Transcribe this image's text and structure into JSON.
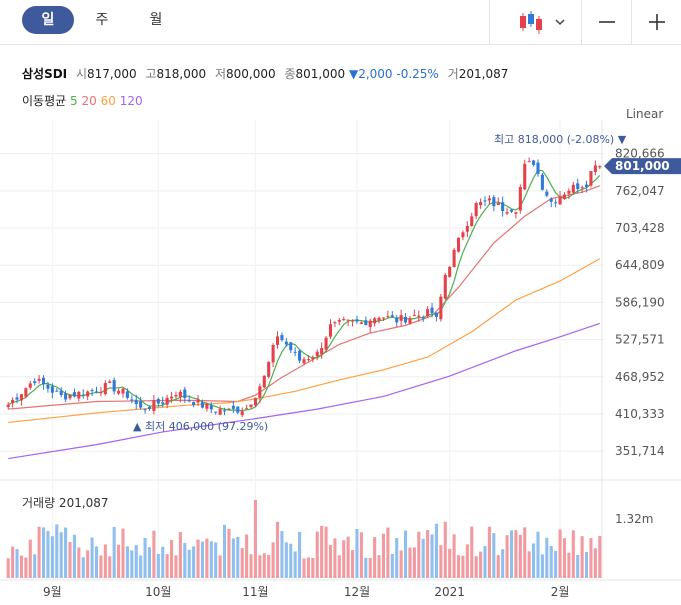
{
  "tabs": [
    "일",
    "주",
    "월"
  ],
  "ticker": {
    "name": "삼성SDI",
    "open_label": "시",
    "open": "817,000",
    "high_label": "고",
    "high": "818,000",
    "low_label": "저",
    "low": "800,000",
    "close_label": "종",
    "close": "801,000",
    "change": "▼2,000 -0.25%",
    "volume_label": "거",
    "volume": "201,087"
  },
  "ma": {
    "label": "이동평균",
    "periods": [
      "5",
      "20",
      "60",
      "120"
    ],
    "colors": [
      "#4caf50",
      "#e57373",
      "#ffa040",
      "#a463f2"
    ]
  },
  "scale_label": "Linear",
  "colors": {
    "up": "#e5414b",
    "down": "#2f7bd9",
    "vol_up": "#f19a9f",
    "vol_down": "#8ebfef",
    "accent": "#3f5a9c"
  },
  "chart_data": {
    "type": "candlestick",
    "price_ticks": [
      820666,
      762047,
      703428,
      644809,
      586190,
      527571,
      468952,
      410333,
      351714
    ],
    "ylim": [
      322000,
      858000
    ],
    "x_labels": [
      {
        "i": 10,
        "t": "9월"
      },
      {
        "i": 34,
        "t": "10월"
      },
      {
        "i": 56,
        "t": "11월"
      },
      {
        "i": 79,
        "t": "12월"
      },
      {
        "i": 100,
        "t": "2021"
      },
      {
        "i": 125,
        "t": "2월"
      }
    ],
    "n": 135,
    "high_annotation": "최고 818,000 (-2.08%) ▼",
    "low_annotation": "▲ 최저 406,000 (97.29%)",
    "last_price_label": "801,000",
    "volume_label": "거래량",
    "volume_value": "201,087",
    "volume_tick": "1.32m",
    "ma_series": {
      "ma20": [
        [
          0,
          418000
        ],
        [
          20,
          430000
        ],
        [
          40,
          432000
        ],
        [
          52,
          430000
        ],
        [
          56,
          440000
        ],
        [
          62,
          468000
        ],
        [
          68,
          492000
        ],
        [
          75,
          520000
        ],
        [
          82,
          538000
        ],
        [
          90,
          550000
        ],
        [
          96,
          565000
        ],
        [
          102,
          610000
        ],
        [
          110,
          680000
        ],
        [
          117,
          722000
        ],
        [
          123,
          750000
        ],
        [
          130,
          760000
        ],
        [
          134,
          770000
        ]
      ],
      "ma60": [
        [
          0,
          397000
        ],
        [
          20,
          412000
        ],
        [
          40,
          424000
        ],
        [
          50,
          428000
        ],
        [
          56,
          434000
        ],
        [
          65,
          446000
        ],
        [
          75,
          464000
        ],
        [
          85,
          480000
        ],
        [
          95,
          500000
        ],
        [
          105,
          540000
        ],
        [
          115,
          590000
        ],
        [
          125,
          620000
        ],
        [
          134,
          655000
        ]
      ],
      "ma120": [
        [
          0,
          340000
        ],
        [
          20,
          362000
        ],
        [
          35,
          382000
        ],
        [
          45,
          392000
        ],
        [
          56,
          403000
        ],
        [
          70,
          418000
        ],
        [
          85,
          438000
        ],
        [
          100,
          470000
        ],
        [
          115,
          510000
        ],
        [
          125,
          532000
        ],
        [
          134,
          553000
        ]
      ]
    },
    "anchors": [
      [
        0,
        425000
      ],
      [
        6,
        465000
      ],
      [
        12,
        438000
      ],
      [
        18,
        445000
      ],
      [
        23,
        455000
      ],
      [
        27,
        440000
      ],
      [
        30,
        418000
      ],
      [
        35,
        430000
      ],
      [
        38,
        445000
      ],
      [
        42,
        430000
      ],
      [
        46,
        418000
      ],
      [
        50,
        415000
      ],
      [
        54,
        420000
      ],
      [
        56,
        442000
      ],
      [
        58,
        468000
      ],
      [
        61,
        535000
      ],
      [
        63,
        520000
      ],
      [
        66,
        495000
      ],
      [
        70,
        505000
      ],
      [
        73,
        548000
      ],
      [
        76,
        554000
      ],
      [
        80,
        554000
      ],
      [
        84,
        566000
      ],
      [
        88,
        558000
      ],
      [
        92,
        565000
      ],
      [
        96,
        570000
      ],
      [
        97,
        558000
      ],
      [
        99,
        630000
      ],
      [
        103,
        700000
      ],
      [
        106,
        740000
      ],
      [
        109,
        745000
      ],
      [
        112,
        735000
      ],
      [
        115,
        735000
      ],
      [
        117,
        800000
      ],
      [
        119,
        808000
      ],
      [
        121,
        770000
      ],
      [
        123,
        745000
      ],
      [
        125,
        755000
      ],
      [
        127,
        765000
      ],
      [
        129,
        770000
      ],
      [
        131,
        775000
      ],
      [
        133,
        808000
      ],
      [
        134,
        801000
      ]
    ]
  }
}
